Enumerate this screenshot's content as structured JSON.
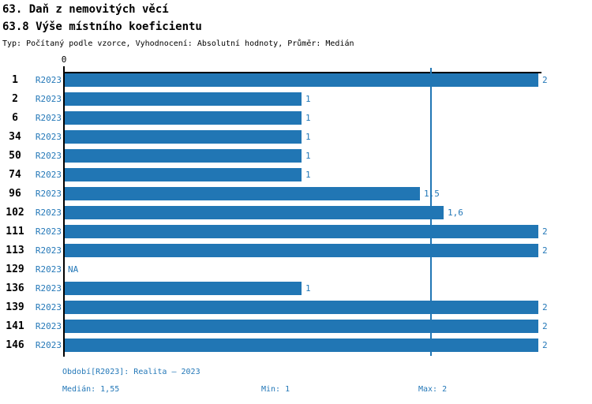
{
  "header": {
    "title_line1": "63. Daň z nemovitých věcí",
    "title_line2": "63.8 Výše místního koeficientu",
    "meta_line": "Typ: Počítaný podle vzorce, Vyhodnocení: Absolutní hodnoty, Průměr: Medián"
  },
  "chart_data": {
    "type": "bar",
    "orientation": "horizontal",
    "title": "63.8 Výše místního koeficientu",
    "categories": [
      "1",
      "2",
      "6",
      "34",
      "50",
      "74",
      "96",
      "102",
      "111",
      "113",
      "129",
      "136",
      "139",
      "141",
      "146"
    ],
    "series_label": "R2023",
    "values": [
      2,
      1,
      1,
      1,
      1,
      1,
      1.5,
      1.6,
      2,
      2,
      null,
      1,
      2,
      2,
      2
    ],
    "value_labels": [
      "2",
      "1",
      "1",
      "1",
      "1",
      "1",
      "1,5",
      "1,6",
      "2",
      "2",
      "NA",
      "1",
      "2",
      "2",
      "2"
    ],
    "xlim": [
      0,
      2
    ],
    "x_axis_ticks": [
      "0"
    ],
    "median_line_value": 1.55,
    "grid": "off",
    "bar_color": "#2176b4",
    "label_color": "#2478b8",
    "axis_color": "#000000"
  },
  "footer": {
    "period_line": "Období[R2023]: Realita – 2023",
    "median_label": "Medián: 1,55",
    "min_label": "Min: 1",
    "max_label": "Max: 2"
  }
}
